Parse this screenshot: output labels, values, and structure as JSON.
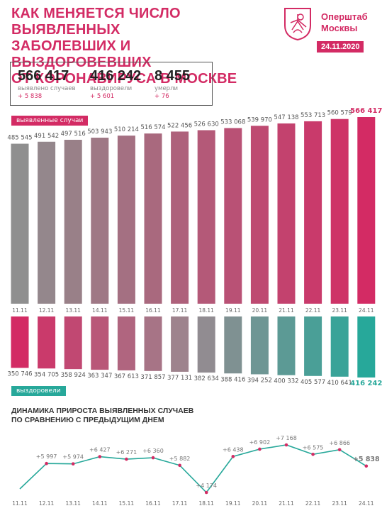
{
  "header": {
    "title_lines": [
      "КАК МЕНЯЕТСЯ ЧИСЛО ВЫЯВЛЕННЫХ",
      "ЗАБОЛЕВШИХ И ВЫЗДОРОВЕВШИХ",
      "ОТ КОРОНАВИРУСА В МОСКВЕ"
    ],
    "brand_lines": [
      "Оперштаб",
      "Москвы"
    ],
    "date": "24.11.2020"
  },
  "summary": {
    "cases": {
      "value": "566 417",
      "label": "выявлено случаев",
      "delta": "+ 5 838"
    },
    "recovered": {
      "value": "416 242",
      "label": "выздоровели",
      "delta": "+ 5 601"
    },
    "deaths": {
      "value": "8 455",
      "label": "умерли",
      "delta": "+ 76"
    }
  },
  "labels": {
    "cases_tag": "выявленные случаи",
    "recovered_tag": "выздоровели",
    "dynamics_title_lines": [
      "ДИНАМИКА ПРИРОСТА ВЫЯВЛЕННЫХ СЛУЧАЕВ",
      "ПО СРАВНЕНИЮ С ПРЕДЫДУЩИМ ДНЕМ"
    ]
  },
  "colors": {
    "accent": "#d32b64",
    "teal": "#27a89a",
    "gray": "#8f8f8f"
  },
  "chart_data": [
    {
      "type": "bar",
      "categories": [
        "11.11",
        "12.11",
        "13.11",
        "14.11",
        "15.11",
        "16.11",
        "17.11",
        "18.11",
        "19.11",
        "20.11",
        "21.11",
        "22.11",
        "23.11",
        "24.11"
      ],
      "series": [
        {
          "name": "выявленные случаи",
          "values": [
            485545,
            491542,
            497516,
            503943,
            510214,
            516574,
            522456,
            526630,
            533068,
            539970,
            547138,
            553713,
            560579,
            566417
          ]
        }
      ],
      "value_labels": [
        "485 545",
        "491 542",
        "497 516",
        "503 943",
        "510 214",
        "516 574",
        "522 456",
        "526 630",
        "533 068",
        "539 970",
        "547 138",
        "553 713",
        "560 579",
        "566 417"
      ],
      "ylim": [
        0,
        566417
      ]
    },
    {
      "type": "bar",
      "categories": [
        "11.11",
        "12.11",
        "13.11",
        "14.11",
        "15.11",
        "16.11",
        "17.11",
        "18.11",
        "19.11",
        "20.11",
        "21.11",
        "22.11",
        "23.11",
        "24.11"
      ],
      "series": [
        {
          "name": "выздоровели",
          "values": [
            350746,
            354705,
            358924,
            363347,
            367613,
            371857,
            377131,
            382634,
            388416,
            394252,
            400332,
            405577,
            410641,
            416242
          ]
        }
      ],
      "value_labels": [
        "350 746",
        "354 705",
        "358 924",
        "363 347",
        "367 613",
        "371 857",
        "377 131",
        "382 634",
        "388 416",
        "394 252",
        "400 332",
        "405 577",
        "410 641",
        "416 242"
      ],
      "ylim": [
        0,
        416242
      ]
    },
    {
      "type": "line",
      "title": "ДИНАМИКА ПРИРОСТА ВЫЯВЛЕННЫХ СЛУЧАЕВ ПО СРАВНЕНИЮ С ПРЕДЫДУЩИМ ДНЕМ",
      "categories": [
        "11.11",
        "12.11",
        "13.11",
        "14.11",
        "15.11",
        "16.11",
        "17.11",
        "18.11",
        "19.11",
        "20.11",
        "21.11",
        "22.11",
        "23.11",
        "24.11"
      ],
      "values": [
        null,
        5997,
        5974,
        6427,
        6271,
        6360,
        5882,
        4174,
        6438,
        6902,
        7168,
        6575,
        6866,
        5838
      ],
      "value_labels": [
        "",
        "+5 997",
        "+5 974",
        "+6 427",
        "+6 271",
        "+6 360",
        "+5 882",
        "+4 174",
        "+6 438",
        "+6 902",
        "+7 168",
        "+6 575",
        "+6 866",
        "+5 838"
      ]
    }
  ]
}
